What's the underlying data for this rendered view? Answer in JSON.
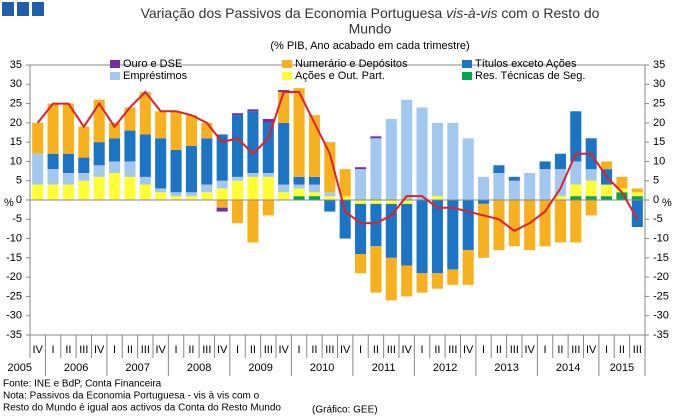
{
  "chart_data": {
    "type": "stacked_bar",
    "title_pre": "Variação dos Passivos da Economia Portuguesa ",
    "title_italic": "vis-à-vis",
    "title_post": " com o Resto do",
    "title_line2": "Mundo",
    "subtitle": "(% PIB, Ano acabado em cada trimestre)",
    "y_unit": "%",
    "categories": [
      "IV",
      "I",
      "II",
      "III",
      "IV",
      "I",
      "II",
      "III",
      "IV",
      "I",
      "II",
      "III",
      "IV",
      "I",
      "II",
      "III",
      "IV",
      "I",
      "II",
      "III",
      "IV",
      "I",
      "II",
      "III",
      "IV",
      "I",
      "II",
      "III",
      "IV",
      "I",
      "II",
      "III",
      "IV",
      "I",
      "II",
      "III",
      "IV",
      "I",
      "II",
      "III"
    ],
    "years": [
      "2005",
      "2006",
      "2007",
      "2008",
      "2009",
      "2010",
      "2011",
      "2012",
      "2013",
      "2014",
      "2015"
    ],
    "ylim": [
      -35,
      35
    ],
    "yticks": [
      35,
      30,
      25,
      20,
      15,
      10,
      5,
      0,
      -5,
      -10,
      -15,
      -20,
      -25,
      -30,
      -35
    ],
    "series": [
      {
        "name": "Res. Técnicas de Seg.",
        "color": "#00a651",
        "values": [
          0,
          0,
          0,
          0,
          0,
          0,
          0,
          0,
          0,
          0,
          0,
          0,
          0,
          0,
          0,
          0,
          0,
          1,
          1,
          0,
          0,
          0,
          0,
          0,
          0,
          0,
          0,
          0,
          0,
          0,
          0,
          0,
          0,
          0,
          0,
          1,
          1,
          1,
          2,
          1
        ]
      },
      {
        "name": "Ações e Out. Part.",
        "color": "#ffff33",
        "values": [
          4,
          4,
          4,
          5,
          6,
          7,
          6,
          4,
          2,
          1,
          1,
          2,
          3,
          5,
          6,
          6,
          2,
          2,
          1,
          1,
          1,
          -1,
          -1,
          -1,
          -1,
          0,
          1,
          0,
          0,
          0,
          0,
          0,
          0,
          0,
          1,
          3,
          4,
          3,
          1,
          1
        ]
      },
      {
        "name": "Empréstimos",
        "color": "#a3c8f0",
        "values": [
          8,
          4,
          3,
          2,
          3,
          3,
          4,
          2,
          1,
          1,
          1,
          2,
          2,
          1,
          1,
          1,
          2,
          1,
          2,
          1,
          0,
          8,
          16,
          21,
          26,
          24,
          19,
          20,
          16,
          6,
          7,
          5,
          7,
          8,
          7,
          6,
          3,
          0,
          0,
          0
        ]
      },
      {
        "name": "Títulos exceto Ações",
        "color": "#1c74c4",
        "values": [
          0,
          4,
          5,
          4,
          6,
          6,
          8,
          11,
          13,
          11,
          12,
          12,
          12,
          16,
          16,
          13,
          16,
          2,
          2,
          -3,
          -10,
          -13,
          -11,
          -14,
          -16,
          -19,
          -19,
          -18,
          -13,
          -1,
          2,
          1,
          0,
          2,
          4,
          13,
          8,
          4,
          0,
          -7
        ]
      },
      {
        "name": "Numerário e Depósitos",
        "color": "#f7b11e",
        "values": [
          8,
          13,
          13,
          8,
          11,
          4,
          6,
          11,
          7,
          10,
          8,
          4,
          -2,
          -6,
          -11,
          -4,
          8,
          23,
          16,
          13,
          7,
          -5,
          -12,
          -11,
          -8,
          -5,
          -4,
          -4,
          -9,
          -14,
          -13,
          -12,
          -13,
          -12,
          -11,
          -11,
          -4,
          2,
          3,
          1
        ]
      },
      {
        "name": "Ouro e DSE",
        "color": "#7030a0",
        "values": [
          0,
          0,
          0,
          0,
          0,
          0,
          0,
          0,
          0,
          0,
          0,
          0,
          -1,
          0.5,
          0.5,
          1,
          0.5,
          0,
          0,
          0,
          0,
          0.5,
          0.5,
          0,
          0,
          0,
          0,
          0,
          0,
          0,
          0,
          0,
          0,
          0,
          0,
          0,
          0,
          0,
          0,
          0
        ]
      }
    ],
    "line": {
      "color": "#e0202a",
      "values": [
        20,
        25,
        25,
        19,
        25,
        19,
        24,
        28,
        23,
        23,
        22,
        20,
        15,
        16,
        12,
        16,
        28,
        28,
        20,
        12,
        -3,
        -6,
        -6,
        -4,
        1,
        1,
        -2,
        -2,
        -3,
        -4,
        -5,
        -8,
        -6,
        -3,
        3,
        12,
        12,
        6,
        2,
        -5
      ]
    },
    "source": "Fonte: INE e BdP, Conta Financeira",
    "note_line1": "Nota: Passivos da Economia Portuguesa - vis à vis com o",
    "note_line2": "Resto do Mundo é igual aos activos da Conta do Resto Mundo",
    "credit": "(Gráfico: GEE)"
  }
}
